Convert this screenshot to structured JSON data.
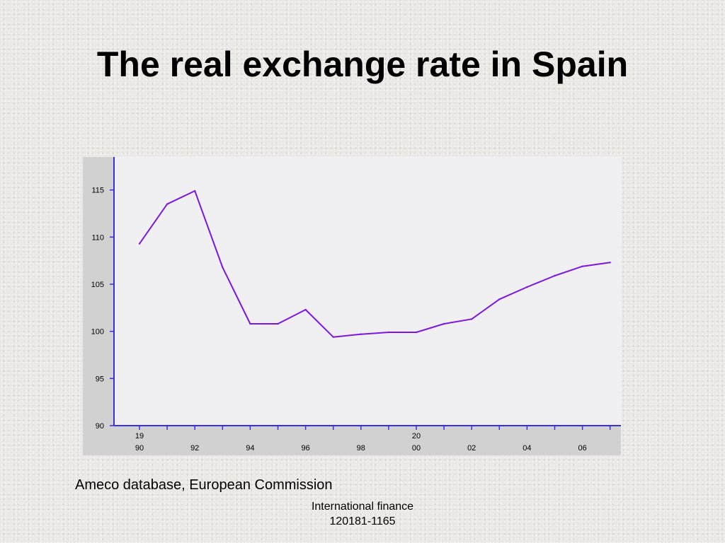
{
  "slide": {
    "title": "The real exchange rate in Spain",
    "source": "Ameco database, European Commission",
    "footer_line1": "International finance",
    "footer_line2": "120181-1165"
  },
  "chart_data": {
    "type": "line",
    "title": "",
    "xlabel": "",
    "ylabel": "",
    "x": [
      1990,
      1991,
      1992,
      1993,
      1994,
      1995,
      1996,
      1997,
      1998,
      1999,
      2000,
      2001,
      2002,
      2003,
      2004,
      2005,
      2006,
      2007
    ],
    "series": [
      {
        "values": [
          109.3,
          113.5,
          114.9,
          106.8,
          100.8,
          100.8,
          102.3,
          99.4,
          99.7,
          99.9,
          99.9,
          100.8,
          101.3,
          103.4,
          104.7,
          105.9,
          106.9,
          107.3
        ]
      }
    ],
    "ylim": [
      90,
      118.5
    ],
    "yticks": [
      {
        "value": 90,
        "label": "90"
      },
      {
        "value": 95,
        "label": "95"
      },
      {
        "value": 100,
        "label": "100"
      },
      {
        "value": 105,
        "label": "105"
      },
      {
        "value": 110,
        "label": "110"
      },
      {
        "value": 115,
        "label": "115"
      }
    ],
    "xticks": [
      {
        "year": 1990,
        "line1": "19",
        "line2": "90"
      },
      {
        "year": 1992,
        "line1": "",
        "line2": "92"
      },
      {
        "year": 1994,
        "line1": "",
        "line2": "94"
      },
      {
        "year": 1996,
        "line1": "",
        "line2": "96"
      },
      {
        "year": 1998,
        "line1": "",
        "line2": "98"
      },
      {
        "year": 2000,
        "line1": "20",
        "line2": "00"
      },
      {
        "year": 2002,
        "line1": "",
        "line2": "02"
      },
      {
        "year": 2004,
        "line1": "",
        "line2": "04"
      },
      {
        "year": 2006,
        "line1": "",
        "line2": "06"
      }
    ],
    "grid": false,
    "legend": "none",
    "colors": {
      "line": "#7b17e6",
      "axis": "#3a2fe0",
      "plot_bg": "#f0eff1",
      "frame_bg": "#d2d1d1",
      "text": "#000000"
    }
  }
}
